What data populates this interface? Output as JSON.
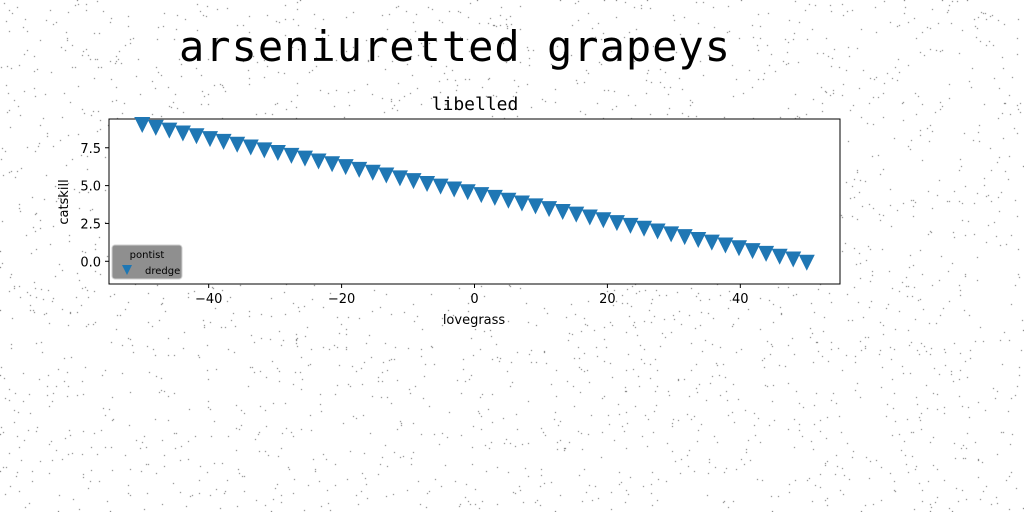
{
  "page_title": "arseniuretted grapeys",
  "chart_data": {
    "type": "scatter",
    "title": "libelled",
    "xlabel": "lovegrass",
    "ylabel": "catskill",
    "xlim": [
      -55,
      55
    ],
    "ylim": [
      -1.5,
      9.4
    ],
    "xticks": [
      -40,
      -20,
      0,
      20,
      40
    ],
    "xtick_labels": [
      "−40",
      "−20",
      "0",
      "20",
      "40"
    ],
    "yticks": [
      0.0,
      2.5,
      5.0,
      7.5
    ],
    "ytick_labels": [
      "0.0",
      "2.5",
      "5.0",
      "7.5"
    ],
    "grid": false,
    "legend": {
      "title": "pontist",
      "placement": "lower-left"
    },
    "series": [
      {
        "name": "dredge",
        "marker": "triangle-down",
        "color": "#1f77b4",
        "x": [
          -50.0,
          -47.96,
          -45.92,
          -43.88,
          -41.84,
          -39.8,
          -37.76,
          -35.71,
          -33.67,
          -31.63,
          -29.59,
          -27.55,
          -25.51,
          -23.47,
          -21.43,
          -19.39,
          -17.35,
          -15.31,
          -13.27,
          -11.22,
          -9.18,
          -7.14,
          -5.1,
          -3.06,
          -1.02,
          1.02,
          3.06,
          5.1,
          7.14,
          9.18,
          11.22,
          13.27,
          15.31,
          17.35,
          19.39,
          21.43,
          23.47,
          25.51,
          27.55,
          29.59,
          31.63,
          33.67,
          35.71,
          37.76,
          39.8,
          41.84,
          43.88,
          45.92,
          47.96,
          50.0
        ],
        "y": [
          9.0,
          8.81,
          8.63,
          8.44,
          8.26,
          8.07,
          7.89,
          7.7,
          7.52,
          7.33,
          7.15,
          6.96,
          6.78,
          6.59,
          6.41,
          6.22,
          6.04,
          5.85,
          5.67,
          5.48,
          5.3,
          5.11,
          4.93,
          4.74,
          4.56,
          4.37,
          4.19,
          4.0,
          3.82,
          3.63,
          3.45,
          3.26,
          3.08,
          2.89,
          2.71,
          2.52,
          2.34,
          2.15,
          1.97,
          1.78,
          1.6,
          1.41,
          1.23,
          1.04,
          0.86,
          0.67,
          0.49,
          0.3,
          0.12,
          -0.1
        ]
      }
    ]
  }
}
